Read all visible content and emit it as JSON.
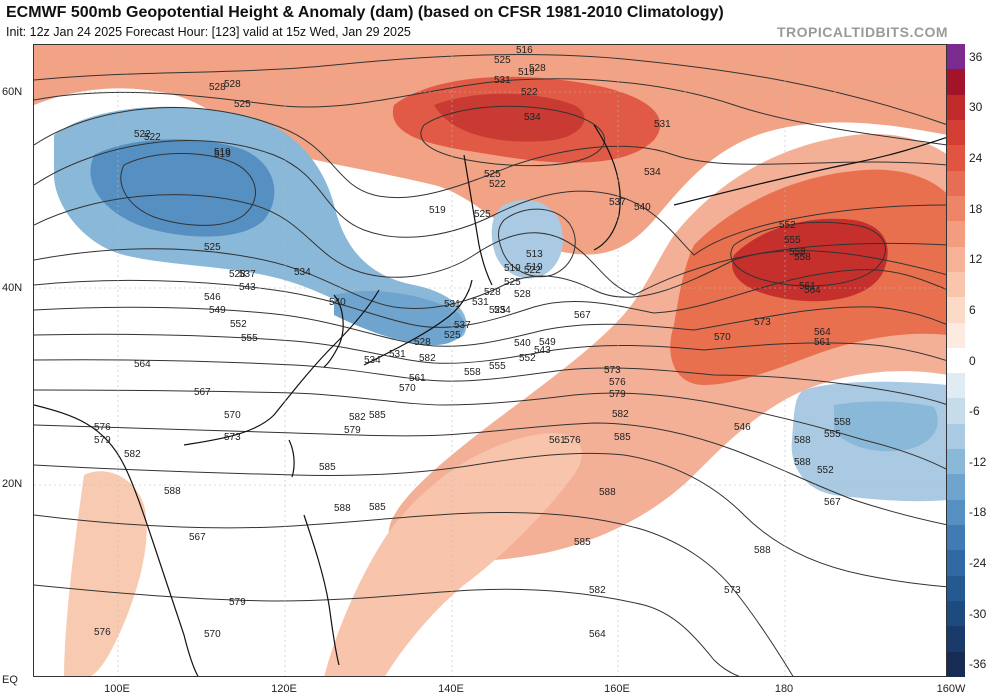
{
  "header": {
    "title": "ECMWF 500mb Geopotential Height & Anomaly (dam) (based on CFSR 1981-2010 Climatology)",
    "subtitle": "Init: 12z Jan 24 2025   Forecast Hour: [123]   valid at 15z Wed, Jan 29 2025",
    "brand": "TROPICALTIDBITS.COM"
  },
  "map": {
    "lat_labels": [
      "60N",
      "40N",
      "20N",
      "EQ"
    ],
    "lon_labels": [
      "100E",
      "120E",
      "140E",
      "160E",
      "180",
      "160W"
    ]
  },
  "colorbar": {
    "labels": [
      "36",
      "30",
      "24",
      "18",
      "12",
      "6",
      "0",
      "-6",
      "-12",
      "-18",
      "-24",
      "-30",
      "-36"
    ],
    "colors": {
      "36": "#7b2a8f",
      "33": "#a3142a",
      "30": "#c02a2a",
      "27": "#d43d32",
      "24": "#e05440",
      "21": "#e86d55",
      "18": "#ef8568",
      "15": "#f39c7f",
      "12": "#f6b296",
      "9": "#f9c6ad",
      "6": "#fbdac8",
      "3": "#fdebe1",
      "0": "#ffffff",
      "-3": "#e0ecf3",
      "-6": "#c6dceb",
      "-9": "#a9cae2",
      "-12": "#8ab8d8",
      "-15": "#6ea4cd",
      "-18": "#5690c2",
      "-21": "#407bb4",
      "-24": "#3069a4",
      "-27": "#245992",
      "-30": "#1d4a7f",
      "-33": "#1a3b6a",
      "-36": "#172c52"
    }
  },
  "contour_labels": [
    "516",
    "519",
    "522",
    "525",
    "528",
    "531",
    "534",
    "528",
    "525",
    "522",
    "519",
    "528",
    "525",
    "531",
    "534",
    "537",
    "540",
    "522",
    "519",
    "528",
    "525",
    "522",
    "519",
    "525",
    "528",
    "525",
    "522",
    "519",
    "513",
    "531",
    "528",
    "534",
    "525",
    "519",
    "537",
    "534",
    "543",
    "546",
    "549",
    "540",
    "531",
    "537",
    "534",
    "531",
    "528",
    "525",
    "552",
    "555",
    "558",
    "561",
    "564",
    "552",
    "555",
    "558",
    "561",
    "564",
    "567",
    "570",
    "573",
    "576",
    "579",
    "582",
    "585",
    "588",
    "546",
    "543",
    "540",
    "549",
    "552",
    "555",
    "558",
    "561",
    "564",
    "567",
    "570",
    "573",
    "576",
    "579",
    "582",
    "585",
    "588",
    "567",
    "570",
    "573",
    "576",
    "579",
    "582",
    "585",
    "588",
    "588",
    "588",
    "588",
    "585",
    "585",
    "582",
    "579",
    "576",
    "573",
    "564",
    "561",
    "558",
    "555",
    "552",
    "567",
    "570",
    "582"
  ]
}
